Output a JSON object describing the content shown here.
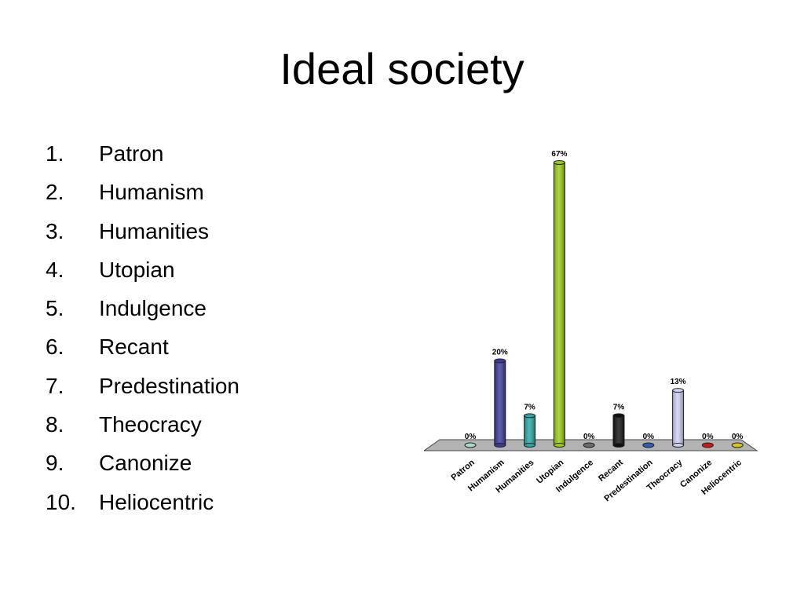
{
  "slide": {
    "title": "Ideal society",
    "options": [
      {
        "num": "1.",
        "label": "Patron"
      },
      {
        "num": "2.",
        "label": "Humanism"
      },
      {
        "num": "3.",
        "label": "Humanities"
      },
      {
        "num": "4.",
        "label": "Utopian"
      },
      {
        "num": "5.",
        "label": "Indulgence"
      },
      {
        "num": "6.",
        "label": "Recant"
      },
      {
        "num": "7.",
        "label": "Predestination"
      },
      {
        "num": "8.",
        "label": "Theocracy"
      },
      {
        "num": "9.",
        "label": "Canonize"
      },
      {
        "num": "10.",
        "label": "Heliocentric"
      }
    ]
  },
  "chart_data": {
    "type": "bar",
    "title": "",
    "xlabel": "",
    "ylabel": "",
    "ylim": [
      0,
      67
    ],
    "grid": false,
    "legend": "none",
    "categories": [
      "Patron",
      "Humanism",
      "Humanities",
      "Utopian",
      "Indulgence",
      "Recant",
      "Predestination",
      "Theocracy",
      "Canonize",
      "Heliocentric"
    ],
    "values": [
      0,
      20,
      7,
      67,
      0,
      7,
      0,
      13,
      0,
      0
    ],
    "data_labels": [
      "0%",
      "20%",
      "7%",
      "67%",
      "0%",
      "7%",
      "0%",
      "13%",
      "0%",
      "0%"
    ],
    "colors": [
      "#a8d8d0",
      "#3a3a9c",
      "#2ba6a6",
      "#99cc1a",
      "#6b6b6b",
      "#111111",
      "#2f5fb3",
      "#cfd0f5",
      "#d01616",
      "#d8c812"
    ]
  }
}
